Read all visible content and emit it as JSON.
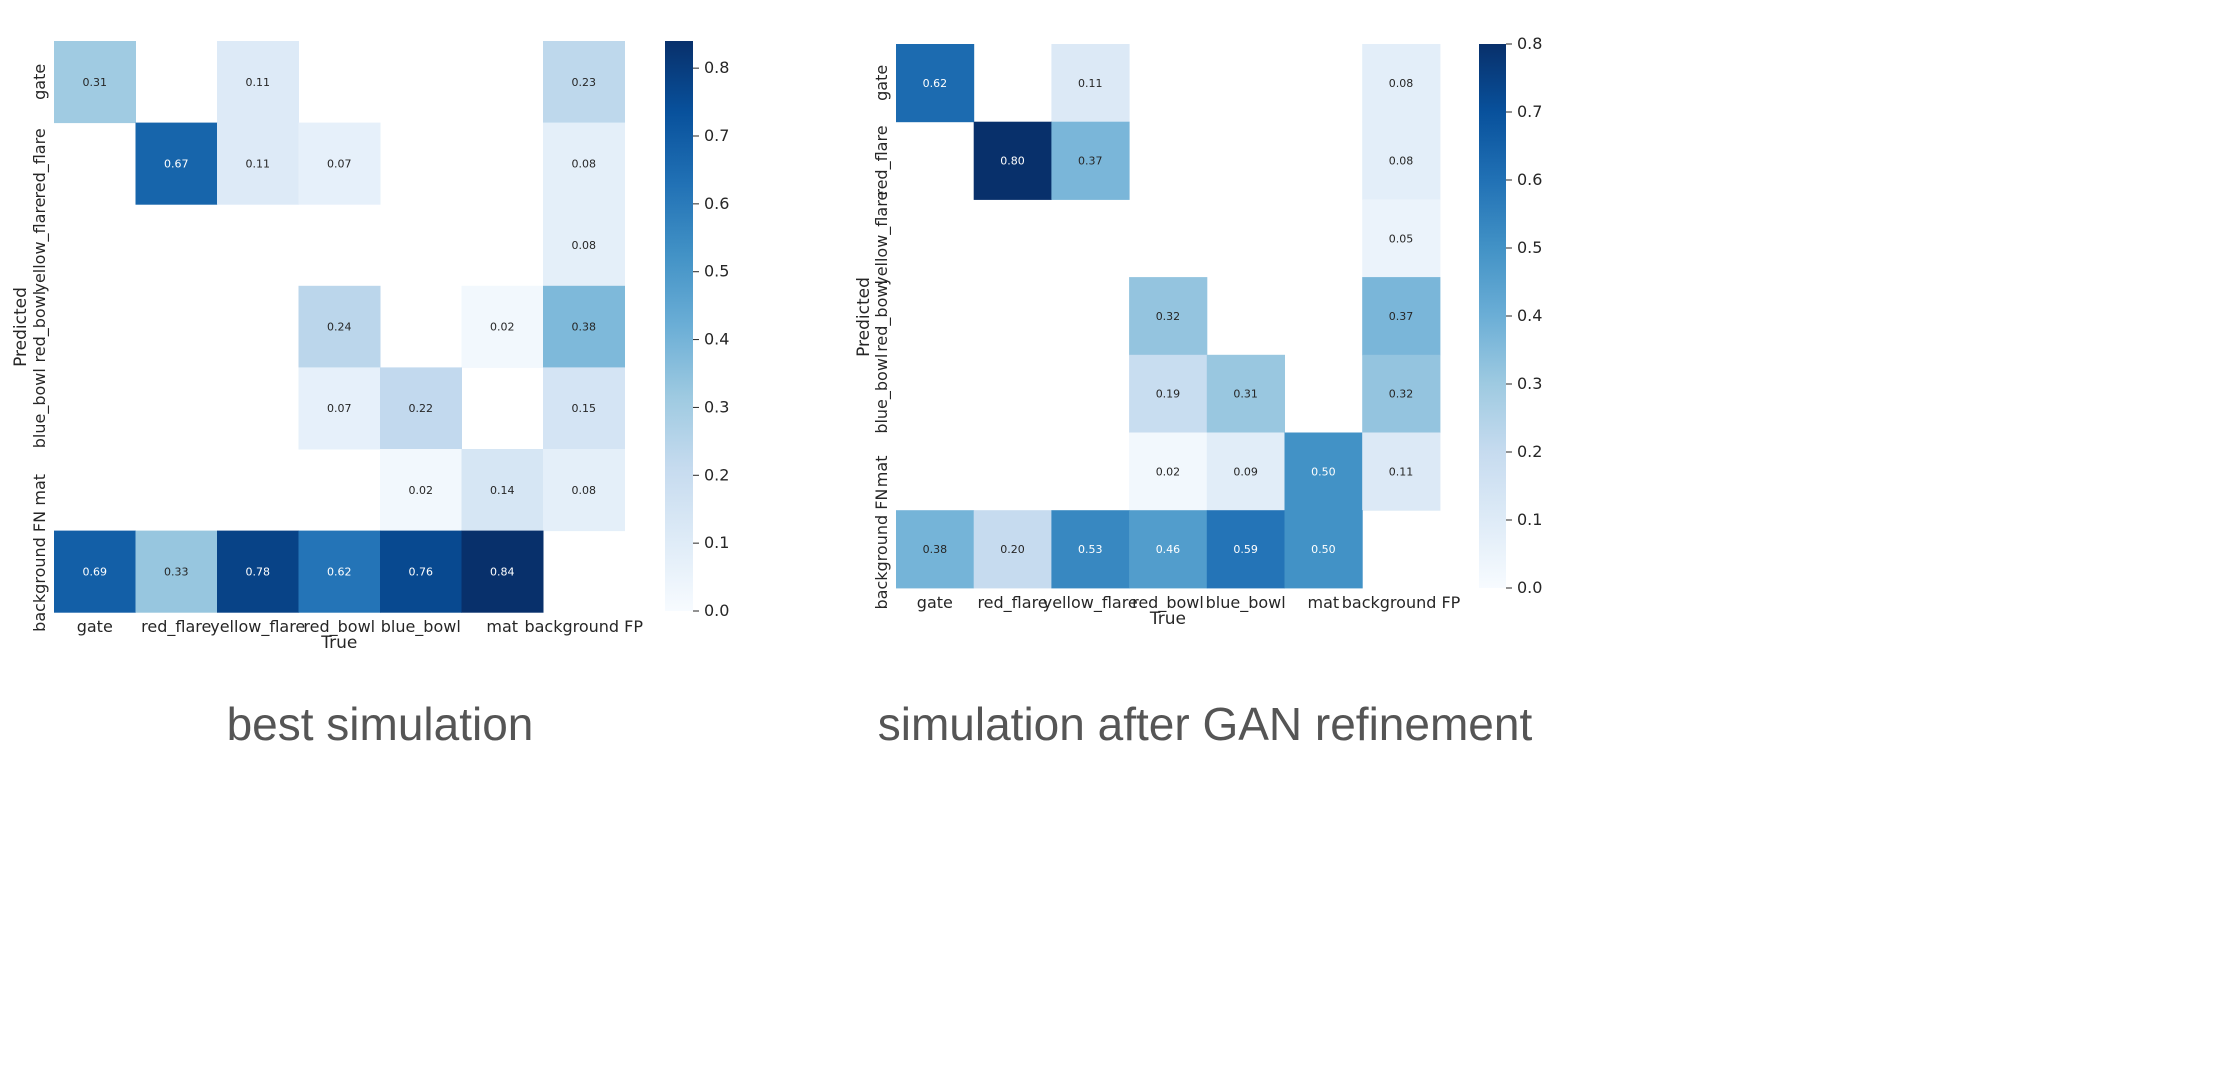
{
  "chart_data": [
    {
      "type": "heatmap",
      "caption": "best simulation",
      "xlabel": "True",
      "ylabel": "Predicted",
      "x_categories": [
        "gate",
        "red_flare",
        "yellow_flare",
        "red_bowl",
        "blue_bowl",
        "mat",
        "background FP"
      ],
      "y_categories": [
        "gate",
        "red_flare",
        "yellow_flare",
        "red_bowl",
        "blue_bowl",
        "mat",
        "background FN"
      ],
      "values": [
        [
          0.31,
          null,
          0.11,
          null,
          null,
          null,
          0.23
        ],
        [
          null,
          0.67,
          0.11,
          0.07,
          null,
          null,
          0.08
        ],
        [
          null,
          null,
          null,
          null,
          null,
          null,
          0.08
        ],
        [
          null,
          null,
          null,
          0.24,
          null,
          0.02,
          0.38
        ],
        [
          null,
          null,
          null,
          0.07,
          0.22,
          null,
          0.15
        ],
        [
          null,
          null,
          null,
          null,
          0.02,
          0.14,
          0.08
        ],
        [
          0.69,
          0.33,
          0.78,
          0.62,
          0.76,
          0.84,
          null
        ]
      ],
      "colorbar": {
        "min": 0.0,
        "max": 0.84,
        "ticks": [
          "0.0",
          "0.1",
          "0.2",
          "0.3",
          "0.4",
          "0.5",
          "0.6",
          "0.7",
          "0.8"
        ],
        "colormap": "Blues"
      }
    },
    {
      "type": "heatmap",
      "caption": "simulation after GAN refinement",
      "xlabel": "True",
      "ylabel": "Predicted",
      "x_categories": [
        "gate",
        "red_flare",
        "yellow_flare",
        "red_bowl",
        "blue_bowl",
        "mat",
        "background FP"
      ],
      "y_categories": [
        "gate",
        "red_flare",
        "yellow_flare",
        "red_bowl",
        "blue_bowl",
        "mat",
        "background FN"
      ],
      "values": [
        [
          0.62,
          null,
          0.11,
          null,
          null,
          null,
          0.08
        ],
        [
          null,
          0.8,
          0.37,
          null,
          null,
          null,
          0.08
        ],
        [
          null,
          null,
          null,
          null,
          null,
          null,
          0.05
        ],
        [
          null,
          null,
          null,
          0.32,
          null,
          null,
          0.37
        ],
        [
          null,
          null,
          null,
          0.19,
          0.31,
          null,
          0.32
        ],
        [
          null,
          null,
          null,
          0.02,
          0.09,
          0.5,
          0.11
        ],
        [
          0.38,
          0.2,
          0.53,
          0.46,
          0.59,
          0.5,
          null
        ]
      ],
      "colorbar": {
        "min": 0.0,
        "max": 0.8,
        "ticks": [
          "0.0",
          "0.1",
          "0.2",
          "0.3",
          "0.4",
          "0.5",
          "0.6",
          "0.7",
          "0.8"
        ],
        "colormap": "Blues"
      }
    }
  ]
}
